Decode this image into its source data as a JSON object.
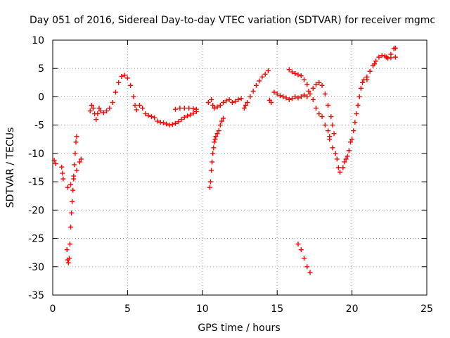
{
  "chart_data": {
    "type": "scatter",
    "title": "Day 051 of 2016, Sidereal Day-to-day VTEC variation (SDTVAR) for receiver mgmc",
    "xlabel": "GPS time / hours",
    "ylabel": "SDTVAR / TECUs",
    "xlim": [
      0,
      25
    ],
    "ylim": [
      -35,
      10
    ],
    "xticks": [
      "0",
      "5",
      "10",
      "15",
      "20",
      "25"
    ],
    "yticks": [
      "10",
      "5",
      "0",
      "-5",
      "-10",
      "-15",
      "-20",
      "-25",
      "-30",
      "-35"
    ],
    "grid": true,
    "marker": "+",
    "color": "#ff0000",
    "series": [
      {
        "name": "SDTVAR",
        "points": [
          [
            0.1,
            -11.2
          ],
          [
            0.2,
            -11.8
          ],
          [
            0.6,
            -12.4
          ],
          [
            0.65,
            -13.5
          ],
          [
            0.7,
            -14.5
          ],
          [
            0.95,
            -27.0
          ],
          [
            1.0,
            -28.8
          ],
          [
            1.05,
            -29.3
          ],
          [
            1.1,
            -28.5
          ],
          [
            1.15,
            -26.0
          ],
          [
            1.2,
            -23.0
          ],
          [
            1.25,
            -20.5
          ],
          [
            1.3,
            -18.5
          ],
          [
            1.35,
            -16.5
          ],
          [
            1.4,
            -14.0
          ],
          [
            1.45,
            -12.0
          ],
          [
            1.5,
            -10.0
          ],
          [
            1.55,
            -8.0
          ],
          [
            1.6,
            -7.0
          ],
          [
            1.0,
            -16.0
          ],
          [
            1.2,
            -15.5
          ],
          [
            1.4,
            -14.5
          ],
          [
            1.6,
            -13.0
          ],
          [
            1.8,
            -11.5
          ],
          [
            1.9,
            -11.0
          ],
          [
            2.5,
            -2.5
          ],
          [
            2.6,
            -1.5
          ],
          [
            2.7,
            -2.0
          ],
          [
            2.8,
            -3.0
          ],
          [
            2.9,
            -4.0
          ],
          [
            3.0,
            -3.0
          ],
          [
            3.1,
            -2.0
          ],
          [
            3.2,
            -2.5
          ],
          [
            3.4,
            -2.8
          ],
          [
            3.6,
            -2.5
          ],
          [
            3.8,
            -2.0
          ],
          [
            4.0,
            -1.0
          ],
          [
            4.2,
            0.8
          ],
          [
            4.4,
            2.5
          ],
          [
            4.6,
            3.6
          ],
          [
            4.8,
            3.8
          ],
          [
            5.0,
            3.3
          ],
          [
            5.2,
            2.0
          ],
          [
            5.4,
            0.0
          ],
          [
            5.5,
            -1.5
          ],
          [
            5.6,
            -2.3
          ],
          [
            5.8,
            -1.5
          ],
          [
            6.0,
            -2.0
          ],
          [
            6.2,
            -3.0
          ],
          [
            6.4,
            -3.3
          ],
          [
            6.6,
            -3.5
          ],
          [
            6.8,
            -3.7
          ],
          [
            7.0,
            -4.3
          ],
          [
            7.2,
            -4.5
          ],
          [
            7.4,
            -4.6
          ],
          [
            7.6,
            -4.8
          ],
          [
            7.8,
            -5.0
          ],
          [
            8.0,
            -4.9
          ],
          [
            8.2,
            -4.7
          ],
          [
            8.4,
            -4.4
          ],
          [
            8.6,
            -4.0
          ],
          [
            8.8,
            -3.6
          ],
          [
            9.0,
            -3.4
          ],
          [
            9.2,
            -3.2
          ],
          [
            9.4,
            -2.9
          ],
          [
            9.6,
            -2.6
          ],
          [
            8.2,
            -2.2
          ],
          [
            8.5,
            -2.0
          ],
          [
            8.8,
            -2.0
          ],
          [
            9.1,
            -2.0
          ],
          [
            9.4,
            -2.1
          ],
          [
            9.6,
            -2.2
          ],
          [
            10.5,
            -16.0
          ],
          [
            10.55,
            -15.0
          ],
          [
            10.6,
            -13.0
          ],
          [
            10.65,
            -11.5
          ],
          [
            10.7,
            -10.0
          ],
          [
            10.75,
            -9.0
          ],
          [
            10.8,
            -8.0
          ],
          [
            10.85,
            -7.5
          ],
          [
            10.9,
            -7.0
          ],
          [
            11.0,
            -6.5
          ],
          [
            11.1,
            -6.0
          ],
          [
            11.2,
            -5.0
          ],
          [
            11.3,
            -4.3
          ],
          [
            11.4,
            -3.8
          ],
          [
            10.4,
            -1.0
          ],
          [
            10.6,
            -0.5
          ],
          [
            10.7,
            -1.5
          ],
          [
            10.8,
            -2.0
          ],
          [
            11.0,
            -1.8
          ],
          [
            11.2,
            -1.5
          ],
          [
            11.4,
            -1.0
          ],
          [
            11.6,
            -0.7
          ],
          [
            11.8,
            -0.5
          ],
          [
            12.0,
            -1.0
          ],
          [
            12.2,
            -0.8
          ],
          [
            12.4,
            -0.5
          ],
          [
            12.6,
            -0.3
          ],
          [
            12.8,
            -2.0
          ],
          [
            12.9,
            -1.5
          ],
          [
            13.0,
            -1.0
          ],
          [
            13.2,
            0.0
          ],
          [
            13.4,
            1.0
          ],
          [
            13.6,
            2.0
          ],
          [
            13.8,
            2.8
          ],
          [
            14.0,
            3.5
          ],
          [
            14.2,
            4.0
          ],
          [
            14.4,
            4.6
          ],
          [
            14.5,
            -0.6
          ],
          [
            14.6,
            -1.0
          ],
          [
            14.8,
            0.8
          ],
          [
            15.0,
            0.5
          ],
          [
            15.2,
            0.2
          ],
          [
            15.4,
            0.0
          ],
          [
            15.6,
            -0.2
          ],
          [
            15.8,
            -0.5
          ],
          [
            16.0,
            -0.3
          ],
          [
            16.2,
            0.0
          ],
          [
            16.4,
            -0.2
          ],
          [
            16.6,
            0.0
          ],
          [
            16.8,
            0.3
          ],
          [
            17.0,
            0.0
          ],
          [
            15.8,
            4.8
          ],
          [
            16.0,
            4.4
          ],
          [
            16.2,
            4.1
          ],
          [
            16.4,
            3.9
          ],
          [
            16.6,
            3.7
          ],
          [
            16.8,
            3.0
          ],
          [
            17.0,
            2.2
          ],
          [
            17.1,
            1.0
          ],
          [
            17.2,
            0.5
          ],
          [
            17.4,
            1.5
          ],
          [
            17.6,
            2.2
          ],
          [
            17.8,
            2.5
          ],
          [
            18.0,
            2.0
          ],
          [
            18.2,
            0.5
          ],
          [
            18.4,
            -1.5
          ],
          [
            18.6,
            -3.5
          ],
          [
            18.7,
            -5.0
          ],
          [
            18.8,
            -6.5
          ],
          [
            17.4,
            -0.5
          ],
          [
            17.6,
            -2.0
          ],
          [
            17.8,
            -3.0
          ],
          [
            18.0,
            -3.5
          ],
          [
            18.2,
            -5.0
          ],
          [
            18.4,
            -6.0
          ],
          [
            18.5,
            -7.0
          ],
          [
            16.4,
            -26.0
          ],
          [
            16.6,
            -27.0
          ],
          [
            16.8,
            -28.5
          ],
          [
            17.0,
            -30.0
          ],
          [
            17.2,
            -31.0
          ],
          [
            18.5,
            -7.5
          ],
          [
            18.7,
            -9.0
          ],
          [
            18.9,
            -10.0
          ],
          [
            19.0,
            -11.0
          ],
          [
            19.1,
            -12.5
          ],
          [
            19.2,
            -13.3
          ],
          [
            19.4,
            -12.5
          ],
          [
            19.6,
            -11.0
          ],
          [
            19.8,
            -9.5
          ],
          [
            20.0,
            -7.5
          ],
          [
            20.1,
            -6.0
          ],
          [
            20.2,
            -4.5
          ],
          [
            20.3,
            -3.0
          ],
          [
            20.4,
            -1.5
          ],
          [
            20.5,
            0.0
          ],
          [
            20.6,
            1.5
          ],
          [
            19.5,
            -11.5
          ],
          [
            19.7,
            -10.5
          ],
          [
            19.9,
            -8.0
          ],
          [
            20.7,
            2.5
          ],
          [
            20.8,
            3.0
          ],
          [
            21.0,
            3.5
          ],
          [
            21.2,
            4.5
          ],
          [
            21.4,
            5.5
          ],
          [
            21.6,
            6.3
          ],
          [
            21.8,
            7.0
          ],
          [
            22.0,
            7.3
          ],
          [
            22.2,
            7.2
          ],
          [
            22.4,
            6.8
          ],
          [
            22.6,
            7.5
          ],
          [
            22.8,
            8.5
          ],
          [
            22.9,
            8.6
          ],
          [
            22.9,
            7.0
          ],
          [
            22.6,
            6.9
          ],
          [
            22.3,
            7.0
          ],
          [
            21.5,
            5.8
          ],
          [
            21.0,
            3.0
          ]
        ]
      }
    ]
  }
}
